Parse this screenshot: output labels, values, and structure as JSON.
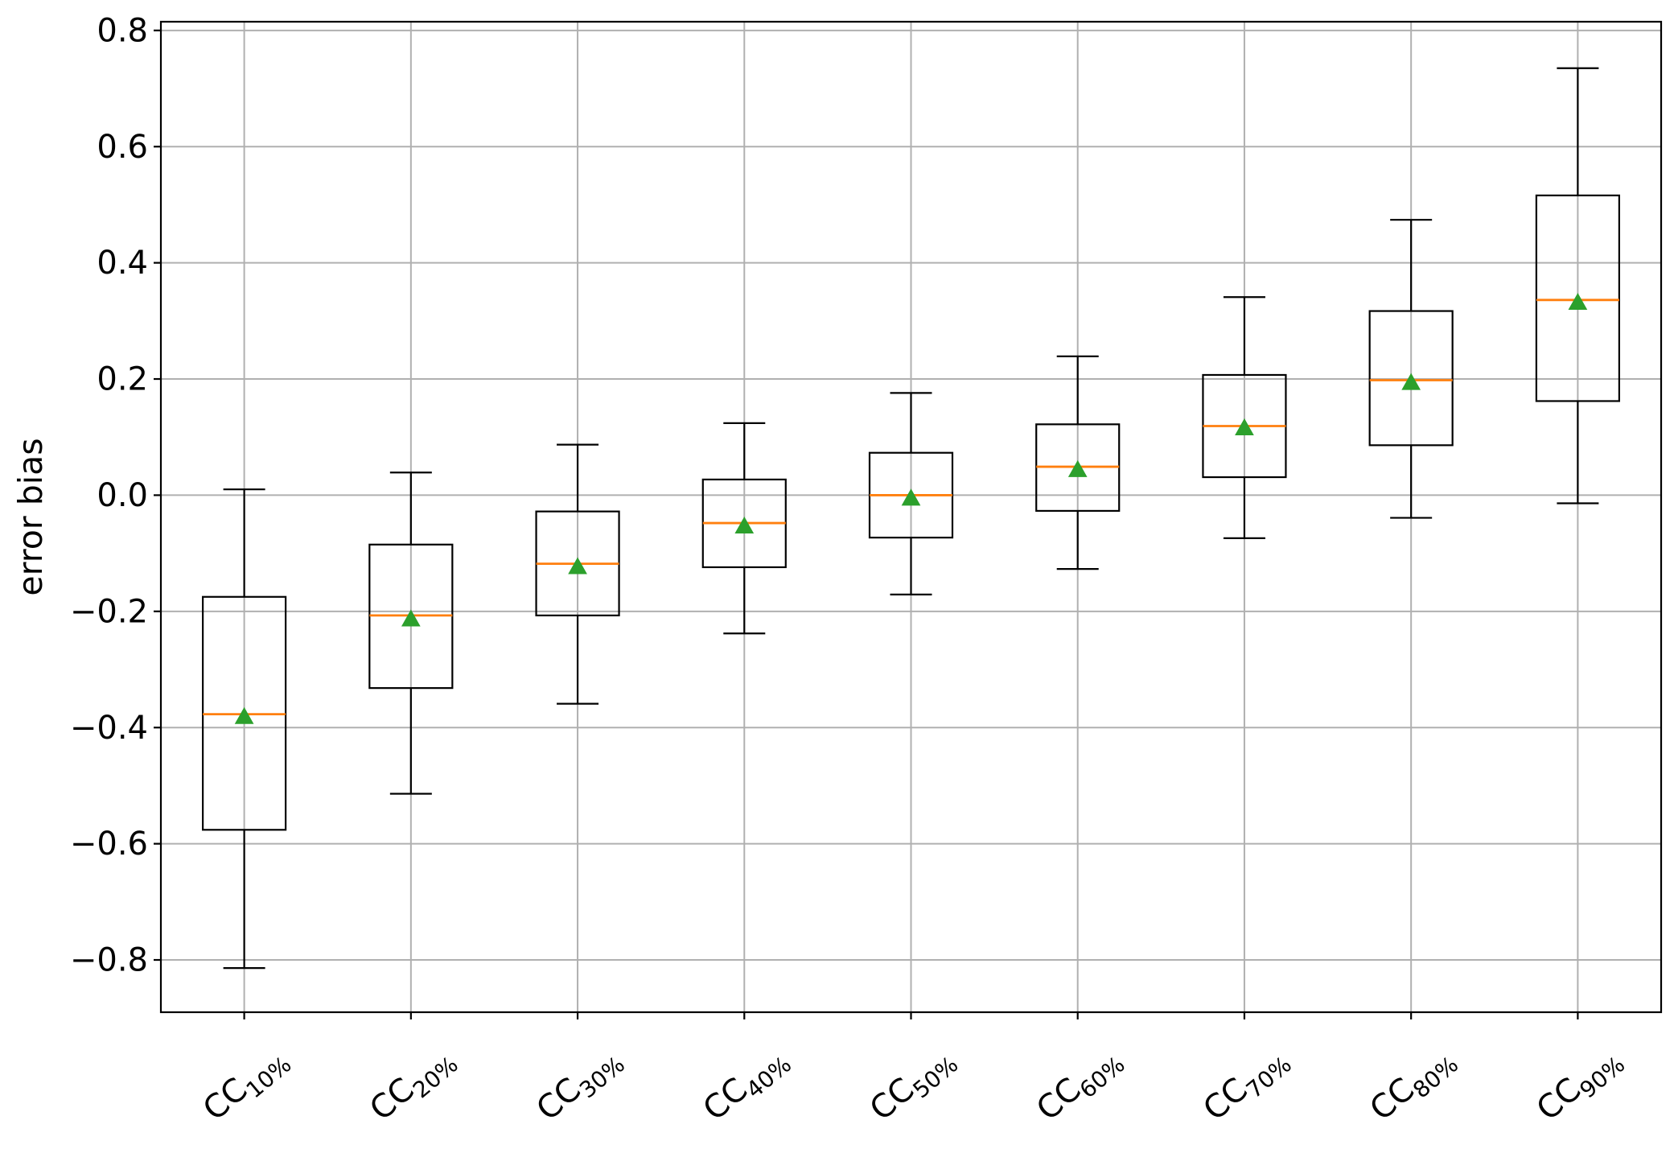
{
  "chart_data": {
    "type": "boxplot",
    "title": "",
    "xlabel": "",
    "ylabel": "error bias",
    "orientation": "vertical",
    "grid": true,
    "legend": "none",
    "ylim": [
      -0.89,
      0.815
    ],
    "yticks": [
      0.8,
      0.6,
      0.4,
      0.2,
      0.0,
      -0.2,
      -0.4,
      -0.6,
      -0.8
    ],
    "ytick_labels": [
      "0.8",
      "0.6",
      "0.4",
      "0.2",
      "0.0",
      "−0.2",
      "−0.4",
      "−0.6",
      "−0.8"
    ],
    "x_tick_rotation_deg": 40,
    "categories": [
      {
        "base": "CC",
        "subscript": "10%"
      },
      {
        "base": "CC",
        "subscript": "20%"
      },
      {
        "base": "CC",
        "subscript": "30%"
      },
      {
        "base": "CC",
        "subscript": "40%"
      },
      {
        "base": "CC",
        "subscript": "50%"
      },
      {
        "base": "CC",
        "subscript": "60%"
      },
      {
        "base": "CC",
        "subscript": "70%"
      },
      {
        "base": "CC",
        "subscript": "80%"
      },
      {
        "base": "CC",
        "subscript": "90%"
      }
    ],
    "boxes": [
      {
        "label": "CC10%",
        "whisker_low": -0.814,
        "q1": -0.576,
        "median": -0.377,
        "mean": -0.38,
        "q3": -0.175,
        "whisker_high": 0.01
      },
      {
        "label": "CC20%",
        "whisker_low": -0.514,
        "q1": -0.332,
        "median": -0.207,
        "mean": -0.212,
        "q3": -0.085,
        "whisker_high": 0.039
      },
      {
        "label": "CC30%",
        "whisker_low": -0.359,
        "q1": -0.207,
        "median": -0.118,
        "mean": -0.122,
        "q3": -0.028,
        "whisker_high": 0.087
      },
      {
        "label": "CC40%",
        "whisker_low": -0.238,
        "q1": -0.124,
        "median": -0.048,
        "mean": -0.052,
        "q3": 0.027,
        "whisker_high": 0.124
      },
      {
        "label": "CC50%",
        "whisker_low": -0.171,
        "q1": -0.073,
        "median": 0.0,
        "mean": -0.004,
        "q3": 0.073,
        "whisker_high": 0.176
      },
      {
        "label": "CC60%",
        "whisker_low": -0.127,
        "q1": -0.027,
        "median": 0.049,
        "mean": 0.045,
        "q3": 0.122,
        "whisker_high": 0.239
      },
      {
        "label": "CC70%",
        "whisker_low": -0.074,
        "q1": 0.031,
        "median": 0.119,
        "mean": 0.117,
        "q3": 0.207,
        "whisker_high": 0.341
      },
      {
        "label": "CC80%",
        "whisker_low": -0.039,
        "q1": 0.086,
        "median": 0.198,
        "mean": 0.195,
        "q3": 0.317,
        "whisker_high": 0.474
      },
      {
        "label": "CC90%",
        "whisker_low": -0.014,
        "q1": 0.162,
        "median": 0.336,
        "mean": 0.333,
        "q3": 0.516,
        "whisker_high": 0.735
      }
    ],
    "mean_marker": "triangle-up",
    "colors": {
      "box_line": "#000000",
      "whisker_line": "#000000",
      "median_line": "#ff7f0e",
      "mean_marker_fill": "#2ca02c",
      "grid_line": "#b0b0b0",
      "spine": "#000000",
      "background": "#ffffff",
      "text": "#000000"
    }
  }
}
